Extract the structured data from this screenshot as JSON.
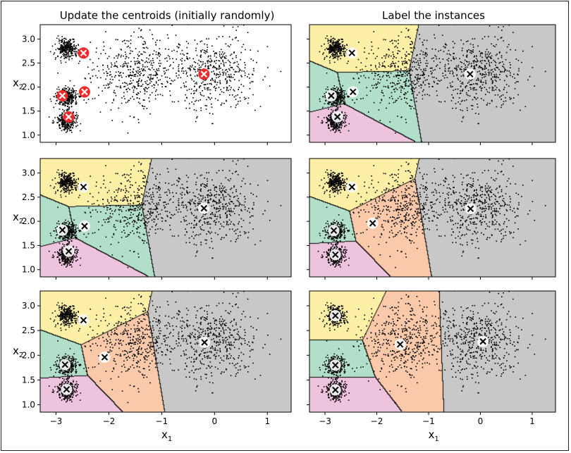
{
  "figure": {
    "left_title": "Update the centroids (initially randomly)",
    "right_title": "Label the instances",
    "xlabel": "x",
    "xlabel_sub": "1",
    "ylabel": "x",
    "ylabel_sub": "2"
  },
  "colors": {
    "region_fill": [
      "#fdf0a6",
      "#b2dfca",
      "#f9c9a9",
      "#eec3de",
      "#c8c8c8"
    ],
    "point": "#000000",
    "centroid_initial_fill": "#ee2a2a",
    "centroid_marker": "#ffffff",
    "boundary": "#000000"
  },
  "chart_data": {
    "type": "scatter",
    "title": "",
    "xlim": [
      -3.3,
      1.45
    ],
    "ylim": [
      0.85,
      3.3
    ],
    "xticks": [
      -3,
      -2,
      -1,
      0,
      1
    ],
    "xtick_labels": [
      "−3",
      "−2",
      "−1",
      "0",
      "1"
    ],
    "yticks": [
      1.0,
      1.5,
      2.0,
      2.5,
      3.0
    ],
    "ytick_labels": [
      "1.0",
      "1.5",
      "2.0",
      "2.5",
      "3.0"
    ],
    "clusters": [
      {
        "center": [
          -2.8,
          2.8
        ],
        "std": 0.1,
        "n": 300
      },
      {
        "center": [
          -2.8,
          1.8
        ],
        "std": 0.1,
        "n": 300
      },
      {
        "center": [
          -2.8,
          1.3
        ],
        "std": 0.1,
        "n": 300
      },
      {
        "center": [
          -1.5,
          2.3
        ],
        "std": 0.4,
        "n": 500
      },
      {
        "center": [
          0.0,
          2.3
        ],
        "std": 0.4,
        "n": 500
      }
    ],
    "iterations": [
      {
        "row": 1,
        "centroids": [
          [
            -2.48,
            2.71
          ],
          [
            -2.88,
            1.82
          ],
          [
            -2.46,
            1.9
          ],
          [
            -2.76,
            1.38
          ],
          [
            -0.2,
            2.27
          ]
        ]
      },
      {
        "row": 2,
        "centroids": [
          [
            -2.48,
            2.71
          ],
          [
            -2.83,
            1.81
          ],
          [
            -2.08,
            1.96
          ],
          [
            -2.8,
            1.31
          ],
          [
            -0.19,
            2.26
          ]
        ]
      },
      {
        "row": 3,
        "centroids": [
          [
            -2.8,
            2.8
          ],
          [
            -2.8,
            1.8
          ],
          [
            -1.55,
            2.22
          ],
          [
            -2.8,
            1.3
          ],
          [
            0.05,
            2.28
          ]
        ]
      }
    ]
  }
}
